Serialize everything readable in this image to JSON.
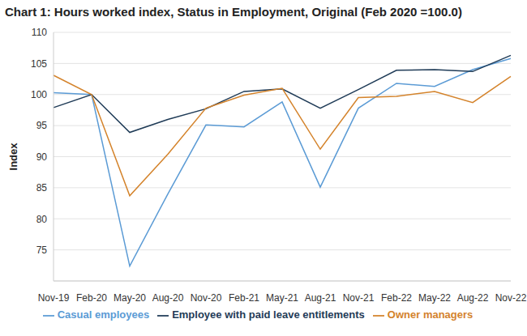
{
  "chart_data": {
    "type": "line",
    "title": "Chart 1: Hours worked index, Status in Employment, Original (Feb 2020 =100.0)",
    "y_label": "Index",
    "categories": [
      "Nov-19",
      "Feb-20",
      "May-20",
      "Aug-20",
      "Nov-20",
      "Feb-21",
      "May-21",
      "Aug-21",
      "Nov-21",
      "Feb-22",
      "May-22",
      "Aug-22",
      "Nov-22"
    ],
    "series": [
      {
        "name": "Casual employees",
        "color": "#5b9bd5",
        "values": [
          100.3,
          100.0,
          72.4,
          84.0,
          95.1,
          94.8,
          98.8,
          85.1,
          97.8,
          101.8,
          101.3,
          104.0,
          105.8
        ]
      },
      {
        "name": "Employee with paid leave entitlements",
        "color": "#1f3b57",
        "values": [
          97.9,
          100.0,
          93.9,
          96.0,
          97.7,
          100.5,
          100.9,
          97.8,
          100.8,
          103.9,
          104.0,
          103.7,
          106.3
        ]
      },
      {
        "name": "Owner managers",
        "color": "#d4832b",
        "values": [
          103.1,
          100.0,
          83.7,
          90.4,
          97.8,
          99.9,
          101.0,
          91.2,
          99.5,
          99.7,
          100.5,
          98.7,
          102.9
        ]
      }
    ],
    "ylim": [
      70,
      110
    ],
    "yticks": [
      75,
      80,
      85,
      90,
      95,
      100,
      105,
      110
    ],
    "grid": true,
    "legend": "bottom"
  }
}
